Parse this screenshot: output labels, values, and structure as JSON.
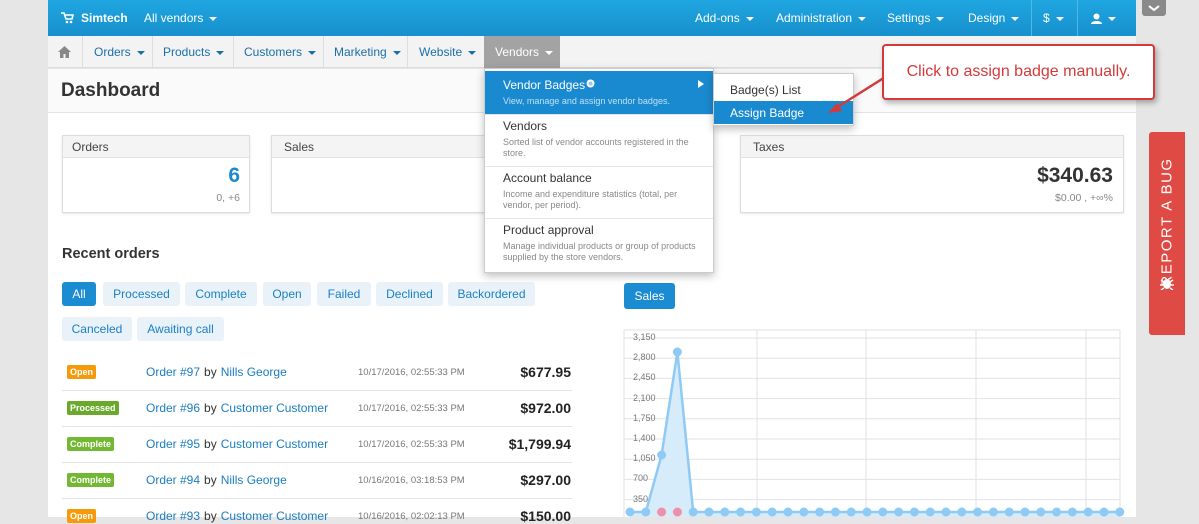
{
  "top_bar": {
    "brand": "Simtech",
    "vendor_selector": "All vendors",
    "menu": [
      "Add-ons",
      "Administration",
      "Settings",
      "Design",
      "$"
    ]
  },
  "nav": {
    "items": [
      "Orders",
      "Products",
      "Customers",
      "Marketing",
      "Website",
      "Vendors"
    ]
  },
  "page_title": "Dashboard",
  "stats": [
    {
      "label": "Orders",
      "value": "6",
      "change": "0, +6"
    },
    {
      "label": "Sales"
    },
    {
      "label": "Taxes",
      "value": "$340.63",
      "change": "$0.00 , +∞%"
    }
  ],
  "recent_orders": {
    "title": "Recent orders",
    "filters": [
      "All",
      "Processed",
      "Complete",
      "Open",
      "Failed",
      "Declined",
      "Backordered",
      "Canceled",
      "Awaiting call"
    ],
    "orders": [
      {
        "status": "Open",
        "order": "Order #97",
        "by": "by",
        "customer": "Nills George",
        "date": "10/17/2016, 02:55:33 PM",
        "total": "$677.95"
      },
      {
        "status": "Processed",
        "order": "Order #96",
        "by": "by",
        "customer": "Customer Customer",
        "date": "10/17/2016, 02:55:33 PM",
        "total": "$972.00"
      },
      {
        "status": "Complete",
        "order": "Order #95",
        "by": "by",
        "customer": "Customer Customer",
        "date": "10/17/2016, 02:55:33 PM",
        "total": "$1,799.94"
      },
      {
        "status": "Complete",
        "order": "Order #94",
        "by": "by",
        "customer": "Nills George",
        "date": "10/16/2016, 03:18:53 PM",
        "total": "$297.00"
      },
      {
        "status": "Open",
        "order": "Order #93",
        "by": "by",
        "customer": "Customer Customer",
        "date": "10/16/2016, 02:02:13 PM",
        "total": "$150.00"
      }
    ]
  },
  "sales_tab": "Sales",
  "chart": {
    "yticks": [
      "3,150",
      "2,800",
      "2,450",
      "2,100",
      "1,750",
      "1,400",
      "1,050",
      "700",
      "350"
    ]
  },
  "vendors_menu": [
    {
      "title": "Vendor Badges",
      "description": "View, manage and assign vendor badges."
    },
    {
      "title": "Vendors",
      "description": "Sorted list of vendor accounts registered in the store."
    },
    {
      "title": "Account balance",
      "description": "Income and expenditure statistics (total, per vendor, per period)."
    },
    {
      "title": "Product approval",
      "description": "Manage individual products or group of products supplied by the store vendors."
    }
  ],
  "submenu": [
    "Badge(s) List",
    "Assign Badge"
  ],
  "callout": "Click to assign badge manually.",
  "report_bug": "REPORT A BUG"
}
